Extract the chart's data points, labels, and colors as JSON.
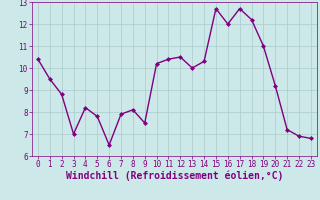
{
  "x": [
    0,
    1,
    2,
    3,
    4,
    5,
    6,
    7,
    8,
    9,
    10,
    11,
    12,
    13,
    14,
    15,
    16,
    17,
    18,
    19,
    20,
    21,
    22,
    23
  ],
  "y": [
    10.4,
    9.5,
    8.8,
    7.0,
    8.2,
    7.8,
    6.5,
    7.9,
    8.1,
    7.5,
    10.2,
    10.4,
    10.5,
    10.0,
    10.3,
    12.7,
    12.0,
    12.7,
    12.2,
    11.0,
    9.2,
    7.2,
    6.9,
    6.8
  ],
  "line_color": "#800080",
  "marker": "D",
  "marker_size": 2,
  "bg_color": "#cce8e8",
  "grid_color": "#aacccc",
  "xlabel": "Windchill (Refroidissement éolien,°C)",
  "xlabel_color": "#800080",
  "ylim": [
    6,
    13
  ],
  "xlim": [
    -0.5,
    23.5
  ],
  "yticks": [
    6,
    7,
    8,
    9,
    10,
    11,
    12,
    13
  ],
  "xticks": [
    0,
    1,
    2,
    3,
    4,
    5,
    6,
    7,
    8,
    9,
    10,
    11,
    12,
    13,
    14,
    15,
    16,
    17,
    18,
    19,
    20,
    21,
    22,
    23
  ],
  "tick_color": "#800080",
  "tick_labelsize": 5.5,
  "xlabel_fontsize": 7,
  "linewidth": 1.0
}
